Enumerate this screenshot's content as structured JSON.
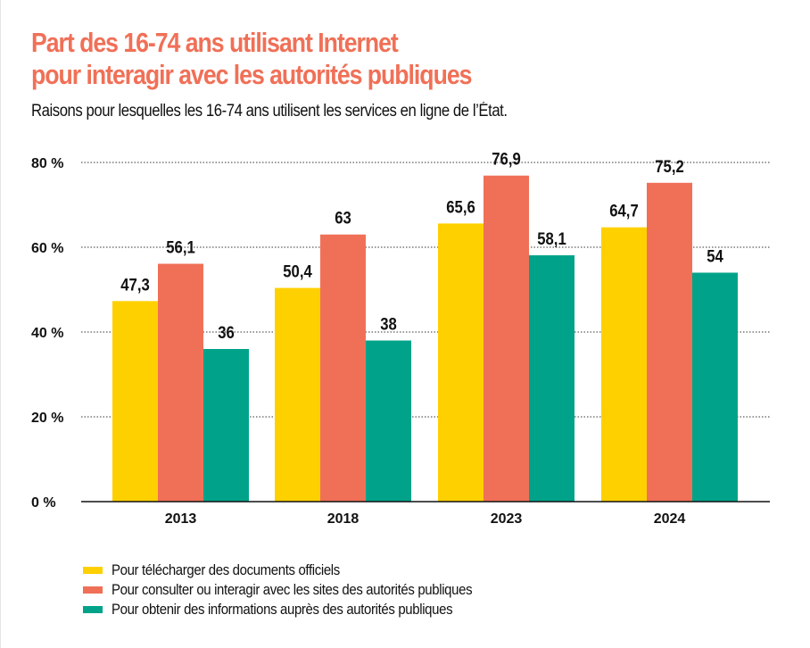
{
  "chart_data": {
    "type": "bar",
    "title": "Part des 16-74 ans utilisant Internet pour interagir avec les autorités publiques",
    "title_lines": [
      "Part des 16-74 ans utilisant Internet",
      "pour interagir avec les autorités publiques"
    ],
    "subtitle": "Raisons pour lesquelles les 16-74 ans utilisent les services en ligne de l’État.",
    "categories": [
      "2013",
      "2018",
      "2023",
      "2024"
    ],
    "series": [
      {
        "name": "Pour télécharger des documents officiels",
        "color": "#FFD000",
        "values": [
          47.3,
          50.4,
          65.6,
          64.7
        ],
        "labels": [
          "47,3",
          "50,4",
          "65,6",
          "64,7"
        ]
      },
      {
        "name": "Pour consulter ou interagir avec les sites des autorités publiques",
        "color": "#F07057",
        "values": [
          56.1,
          63,
          76.9,
          75.2
        ],
        "labels": [
          "56,1",
          "63",
          "76,9",
          "75,2"
        ]
      },
      {
        "name": "Pour obtenir des informations auprès des autorités publiques",
        "color": "#00A38A",
        "values": [
          36,
          38,
          58.1,
          54
        ],
        "labels": [
          "36",
          "38",
          "58,1",
          "54"
        ]
      }
    ],
    "ylim": [
      0,
      80
    ],
    "yticks": [
      0,
      20,
      40,
      60,
      80
    ],
    "ytick_labels": [
      "0 %",
      "20 %",
      "40 %",
      "60 %",
      "80 %"
    ],
    "grid": "horizontal dotted",
    "legend_position": "bottom-left",
    "title_color": "#F07057"
  }
}
